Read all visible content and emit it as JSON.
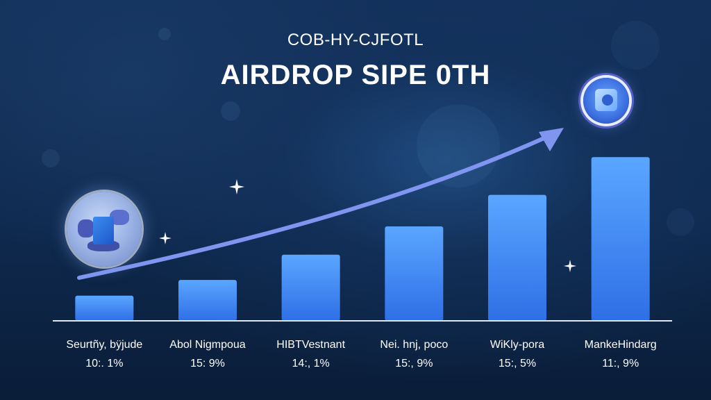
{
  "header": {
    "subtitle": "COB-HY-CJFOTL",
    "title": "AIRDROP SIPE 0TH"
  },
  "chart_data": {
    "type": "bar",
    "title": "AIRDROP SIPE 0TH",
    "subtitle": "COB-HY-CJFOTL",
    "categories": [
      "Seurtñy, bÿjude",
      "Abol Nigmpoua",
      "HIBTVestnant",
      "Nei. hnj, poco",
      "WiKly-pora",
      "MankeHindarg"
    ],
    "value_labels": [
      "10:. 1%",
      "15: 9%",
      "14:, 1%",
      "15:, 9%",
      "15:, 5%",
      "11:, 9%"
    ],
    "values": [
      4,
      6.5,
      10.5,
      15,
      20,
      26
    ],
    "ylim": [
      0,
      30
    ],
    "grid": false,
    "legend": "none",
    "trend_arrow": true
  },
  "colors": {
    "bar_top": "#5aa6ff",
    "bar_bottom": "#2f6fe6",
    "arrow": "#7f95f0",
    "baseline": "#dfe8f7"
  },
  "icons": [
    "globe-cube-badge-icon",
    "crypto-coin-badge-icon",
    "sparkle-icon"
  ]
}
